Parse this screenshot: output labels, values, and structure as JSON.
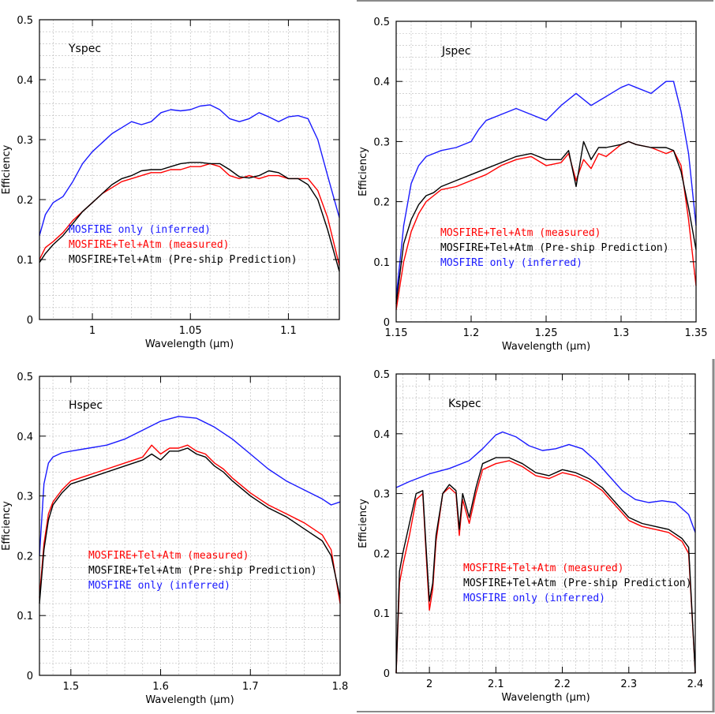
{
  "chart_data": [
    {
      "type": "line",
      "title": "Yspec",
      "xlabel": "Wavelength (µm)",
      "ylabel": "Efficiency",
      "xlim": [
        0.973,
        1.126
      ],
      "ylim": [
        0,
        0.5
      ],
      "xticks": [
        1,
        1.05,
        1.1
      ],
      "xtick_labels": [
        "1",
        "1.05",
        "1.1"
      ],
      "yticks": [
        0,
        0.1,
        0.2,
        0.3,
        0.4,
        0.5
      ],
      "ytick_labels": [
        "0",
        "0.1",
        "0.2",
        "0.3",
        "0.4",
        "0.5"
      ],
      "grid": true,
      "legend": [
        "MOSFIRE only (inferred)",
        "MOSFIRE+Tel+Atm (measured)",
        "MOSFIRE+Tel+Atm (Pre-ship Prediction)"
      ],
      "series": [
        {
          "key": "inferred",
          "color": "#1a1aff",
          "x": [
            0.973,
            0.976,
            0.98,
            0.985,
            0.99,
            0.995,
            1.0,
            1.005,
            1.01,
            1.015,
            1.02,
            1.025,
            1.03,
            1.035,
            1.04,
            1.045,
            1.05,
            1.055,
            1.06,
            1.065,
            1.07,
            1.075,
            1.08,
            1.085,
            1.09,
            1.095,
            1.1,
            1.105,
            1.11,
            1.115,
            1.12,
            1.126
          ],
          "y": [
            0.14,
            0.175,
            0.195,
            0.205,
            0.23,
            0.26,
            0.28,
            0.295,
            0.31,
            0.32,
            0.33,
            0.325,
            0.33,
            0.345,
            0.35,
            0.348,
            0.35,
            0.356,
            0.358,
            0.35,
            0.335,
            0.33,
            0.335,
            0.345,
            0.338,
            0.33,
            0.338,
            0.34,
            0.335,
            0.3,
            0.24,
            0.17
          ]
        },
        {
          "key": "measured",
          "color": "#ff0000",
          "x": [
            0.973,
            0.976,
            0.98,
            0.985,
            0.99,
            0.995,
            1.0,
            1.005,
            1.01,
            1.015,
            1.02,
            1.025,
            1.03,
            1.035,
            1.04,
            1.045,
            1.05,
            1.055,
            1.06,
            1.065,
            1.07,
            1.075,
            1.08,
            1.085,
            1.09,
            1.095,
            1.1,
            1.105,
            1.11,
            1.115,
            1.12,
            1.126
          ],
          "y": [
            0.1,
            0.12,
            0.13,
            0.145,
            0.165,
            0.18,
            0.195,
            0.21,
            0.22,
            0.23,
            0.235,
            0.24,
            0.245,
            0.245,
            0.25,
            0.25,
            0.255,
            0.255,
            0.26,
            0.255,
            0.24,
            0.235,
            0.24,
            0.235,
            0.24,
            0.24,
            0.235,
            0.235,
            0.235,
            0.215,
            0.17,
            0.09
          ]
        },
        {
          "key": "preship",
          "color": "#000000",
          "x": [
            0.973,
            0.976,
            0.98,
            0.985,
            0.99,
            0.995,
            1.0,
            1.005,
            1.01,
            1.015,
            1.02,
            1.025,
            1.03,
            1.035,
            1.04,
            1.045,
            1.05,
            1.055,
            1.06,
            1.065,
            1.07,
            1.075,
            1.08,
            1.085,
            1.09,
            1.095,
            1.1,
            1.105,
            1.11,
            1.115,
            1.12,
            1.126
          ],
          "y": [
            0.095,
            0.11,
            0.125,
            0.14,
            0.16,
            0.18,
            0.195,
            0.21,
            0.225,
            0.235,
            0.24,
            0.248,
            0.25,
            0.25,
            0.255,
            0.26,
            0.262,
            0.262,
            0.26,
            0.26,
            0.25,
            0.238,
            0.236,
            0.24,
            0.248,
            0.245,
            0.235,
            0.235,
            0.225,
            0.2,
            0.15,
            0.08
          ]
        }
      ]
    },
    {
      "type": "line",
      "title": "Jspec",
      "xlabel": "Wavelength (µm)",
      "ylabel": "Efficiency",
      "xlim": [
        1.15,
        1.35
      ],
      "ylim": [
        0,
        0.5
      ],
      "xticks": [
        1.15,
        1.2,
        1.25,
        1.3,
        1.35
      ],
      "xtick_labels": [
        "1.15",
        "1.2",
        "1.25",
        "1.3",
        "1.35"
      ],
      "yticks": [
        0,
        0.1,
        0.2,
        0.3,
        0.4,
        0.5
      ],
      "ytick_labels": [
        "0",
        "0.1",
        "0.2",
        "0.3",
        "0.4",
        "0.5"
      ],
      "grid": true,
      "legend": [
        "MOSFIRE+Tel+Atm (measured)",
        "MOSFIRE+Tel+Atm (Pre-ship Prediction)",
        "MOSFIRE only (inferred)"
      ],
      "series": [
        {
          "key": "inferred",
          "color": "#1a1aff",
          "x": [
            1.15,
            1.155,
            1.16,
            1.165,
            1.17,
            1.175,
            1.18,
            1.19,
            1.2,
            1.205,
            1.21,
            1.22,
            1.23,
            1.24,
            1.25,
            1.26,
            1.27,
            1.28,
            1.29,
            1.3,
            1.305,
            1.31,
            1.32,
            1.33,
            1.335,
            1.34,
            1.345,
            1.35
          ],
          "y": [
            0.04,
            0.16,
            0.23,
            0.26,
            0.275,
            0.28,
            0.285,
            0.29,
            0.3,
            0.32,
            0.335,
            0.345,
            0.355,
            0.345,
            0.335,
            0.36,
            0.38,
            0.36,
            0.375,
            0.39,
            0.395,
            0.39,
            0.38,
            0.4,
            0.4,
            0.35,
            0.28,
            0.16
          ]
        },
        {
          "key": "measured",
          "color": "#ff0000",
          "x": [
            1.15,
            1.155,
            1.16,
            1.165,
            1.17,
            1.175,
            1.18,
            1.19,
            1.2,
            1.21,
            1.22,
            1.23,
            1.24,
            1.25,
            1.26,
            1.265,
            1.27,
            1.275,
            1.28,
            1.285,
            1.29,
            1.3,
            1.305,
            1.31,
            1.32,
            1.33,
            1.335,
            1.34,
            1.345,
            1.35
          ],
          "y": [
            0.02,
            0.1,
            0.15,
            0.18,
            0.2,
            0.21,
            0.22,
            0.225,
            0.235,
            0.245,
            0.26,
            0.27,
            0.275,
            0.26,
            0.265,
            0.28,
            0.235,
            0.27,
            0.255,
            0.28,
            0.275,
            0.295,
            0.3,
            0.295,
            0.29,
            0.28,
            0.285,
            0.26,
            0.17,
            0.06
          ]
        },
        {
          "key": "preship",
          "color": "#000000",
          "x": [
            1.15,
            1.155,
            1.16,
            1.165,
            1.17,
            1.175,
            1.18,
            1.19,
            1.2,
            1.21,
            1.22,
            1.23,
            1.24,
            1.25,
            1.26,
            1.265,
            1.27,
            1.275,
            1.28,
            1.285,
            1.29,
            1.3,
            1.305,
            1.31,
            1.32,
            1.33,
            1.335,
            1.34,
            1.345,
            1.35
          ],
          "y": [
            0.03,
            0.13,
            0.17,
            0.195,
            0.21,
            0.215,
            0.225,
            0.235,
            0.245,
            0.255,
            0.265,
            0.275,
            0.28,
            0.27,
            0.27,
            0.285,
            0.225,
            0.3,
            0.27,
            0.29,
            0.29,
            0.295,
            0.3,
            0.295,
            0.29,
            0.29,
            0.285,
            0.25,
            0.19,
            0.12
          ]
        }
      ]
    },
    {
      "type": "line",
      "title": "Hspec",
      "xlabel": "Wavelength (µm)",
      "ylabel": "Efficiency",
      "xlim": [
        1.465,
        1.8
      ],
      "ylim": [
        0,
        0.5
      ],
      "xticks": [
        1.5,
        1.6,
        1.7,
        1.8
      ],
      "xtick_labels": [
        "1.5",
        "1.6",
        "1.7",
        "1.8"
      ],
      "yticks": [
        0,
        0.1,
        0.2,
        0.3,
        0.4,
        0.5
      ],
      "ytick_labels": [
        "0",
        "0.1",
        "0.2",
        "0.3",
        "0.4",
        "0.5"
      ],
      "grid": true,
      "legend": [
        "MOSFIRE+Tel+Atm (measured)",
        "MOSFIRE+Tel+Atm (Pre-ship Prediction)",
        "MOSFIRE only (inferred)"
      ],
      "series": [
        {
          "key": "inferred",
          "color": "#1a1aff",
          "x": [
            1.465,
            1.47,
            1.475,
            1.48,
            1.49,
            1.5,
            1.52,
            1.54,
            1.56,
            1.58,
            1.6,
            1.62,
            1.64,
            1.66,
            1.68,
            1.7,
            1.72,
            1.74,
            1.76,
            1.78,
            1.79,
            1.8
          ],
          "y": [
            0.2,
            0.32,
            0.355,
            0.365,
            0.372,
            0.375,
            0.38,
            0.385,
            0.395,
            0.41,
            0.425,
            0.433,
            0.43,
            0.415,
            0.395,
            0.37,
            0.345,
            0.325,
            0.31,
            0.295,
            0.285,
            0.29
          ]
        },
        {
          "key": "measured",
          "color": "#ff0000",
          "x": [
            1.465,
            1.47,
            1.475,
            1.48,
            1.49,
            1.5,
            1.52,
            1.54,
            1.56,
            1.58,
            1.59,
            1.6,
            1.61,
            1.62,
            1.63,
            1.64,
            1.65,
            1.66,
            1.67,
            1.68,
            1.7,
            1.72,
            1.74,
            1.76,
            1.78,
            1.79,
            1.8
          ],
          "y": [
            0.13,
            0.22,
            0.27,
            0.29,
            0.31,
            0.325,
            0.335,
            0.345,
            0.355,
            0.365,
            0.385,
            0.37,
            0.38,
            0.38,
            0.385,
            0.375,
            0.37,
            0.355,
            0.345,
            0.33,
            0.305,
            0.285,
            0.27,
            0.255,
            0.235,
            0.21,
            0.12
          ]
        },
        {
          "key": "preship",
          "color": "#000000",
          "x": [
            1.465,
            1.47,
            1.475,
            1.48,
            1.49,
            1.5,
            1.52,
            1.54,
            1.56,
            1.58,
            1.59,
            1.6,
            1.61,
            1.62,
            1.63,
            1.64,
            1.65,
            1.66,
            1.67,
            1.68,
            1.7,
            1.72,
            1.74,
            1.76,
            1.78,
            1.79,
            1.8
          ],
          "y": [
            0.12,
            0.21,
            0.26,
            0.285,
            0.305,
            0.32,
            0.33,
            0.34,
            0.35,
            0.36,
            0.37,
            0.36,
            0.375,
            0.375,
            0.38,
            0.37,
            0.365,
            0.35,
            0.34,
            0.325,
            0.3,
            0.28,
            0.265,
            0.245,
            0.225,
            0.2,
            0.13
          ]
        }
      ]
    },
    {
      "type": "line",
      "title": "Kspec",
      "xlabel": "Wavelength (µm)",
      "ylabel": "Efficiency",
      "xlim": [
        1.95,
        2.4
      ],
      "ylim": [
        0,
        0.5
      ],
      "xticks": [
        2,
        2.1,
        2.2,
        2.3,
        2.4
      ],
      "xtick_labels": [
        "2",
        "2.1",
        "2.2",
        "2.3",
        "2.4"
      ],
      "yticks": [
        0,
        0.1,
        0.2,
        0.3,
        0.4,
        0.5
      ],
      "ytick_labels": [
        "0",
        "0.1",
        "0.2",
        "0.3",
        "0.4",
        "0.5"
      ],
      "grid": true,
      "legend": [
        "MOSFIRE+Tel+Atm (measured)",
        "MOSFIRE+Tel+Atm (Pre-ship Prediction)",
        "MOSFIRE only (inferred)"
      ],
      "series": [
        {
          "key": "inferred",
          "color": "#1a1aff",
          "x": [
            1.95,
            1.97,
            2.0,
            2.03,
            2.06,
            2.08,
            2.1,
            2.11,
            2.13,
            2.15,
            2.17,
            2.19,
            2.21,
            2.23,
            2.25,
            2.27,
            2.29,
            2.31,
            2.33,
            2.35,
            2.37,
            2.39,
            2.4
          ],
          "y": [
            0.31,
            0.32,
            0.333,
            0.342,
            0.355,
            0.375,
            0.398,
            0.403,
            0.395,
            0.38,
            0.372,
            0.375,
            0.382,
            0.375,
            0.355,
            0.33,
            0.305,
            0.29,
            0.285,
            0.288,
            0.285,
            0.265,
            0.235
          ]
        },
        {
          "key": "measured",
          "color": "#ff0000",
          "x": [
            1.95,
            1.955,
            1.96,
            1.97,
            1.98,
            1.99,
            1.995,
            2.0,
            2.005,
            2.01,
            2.02,
            2.03,
            2.04,
            2.045,
            2.05,
            2.06,
            2.07,
            2.08,
            2.1,
            2.12,
            2.14,
            2.16,
            2.18,
            2.2,
            2.22,
            2.24,
            2.26,
            2.28,
            2.3,
            2.32,
            2.34,
            2.36,
            2.38,
            2.39,
            2.4
          ],
          "y": [
            0.0,
            0.15,
            0.18,
            0.23,
            0.29,
            0.3,
            0.2,
            0.105,
            0.14,
            0.22,
            0.3,
            0.31,
            0.3,
            0.23,
            0.29,
            0.25,
            0.3,
            0.34,
            0.35,
            0.355,
            0.345,
            0.33,
            0.325,
            0.335,
            0.33,
            0.32,
            0.305,
            0.28,
            0.255,
            0.245,
            0.24,
            0.235,
            0.22,
            0.2,
            0.0
          ]
        },
        {
          "key": "preship",
          "color": "#000000",
          "x": [
            1.95,
            1.955,
            1.96,
            1.97,
            1.98,
            1.99,
            1.995,
            2.0,
            2.005,
            2.01,
            2.02,
            2.03,
            2.04,
            2.045,
            2.05,
            2.06,
            2.07,
            2.08,
            2.1,
            2.12,
            2.14,
            2.16,
            2.18,
            2.2,
            2.22,
            2.24,
            2.26,
            2.28,
            2.3,
            2.32,
            2.34,
            2.36,
            2.38,
            2.39,
            2.4
          ],
          "y": [
            0.0,
            0.17,
            0.2,
            0.25,
            0.3,
            0.305,
            0.21,
            0.12,
            0.15,
            0.23,
            0.3,
            0.315,
            0.305,
            0.24,
            0.3,
            0.26,
            0.31,
            0.35,
            0.36,
            0.36,
            0.35,
            0.335,
            0.33,
            0.34,
            0.335,
            0.325,
            0.31,
            0.285,
            0.26,
            0.25,
            0.245,
            0.24,
            0.225,
            0.21,
            0.0
          ]
        }
      ]
    }
  ]
}
